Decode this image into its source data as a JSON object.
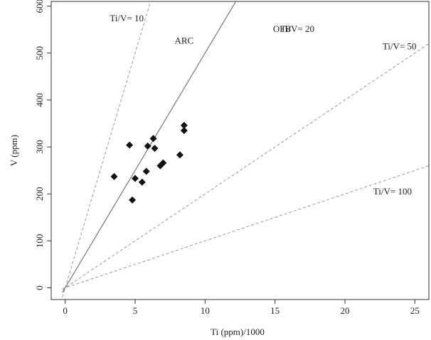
{
  "chart_data": {
    "type": "scatter",
    "xlabel": "Ti (ppm)/1000",
    "ylabel": "V (ppm)",
    "xlim": [
      -1,
      26
    ],
    "ylim": [
      -25,
      610
    ],
    "xticks": [
      "0",
      "5",
      "10",
      "15",
      "20",
      "25"
    ],
    "yticks": [
      "0",
      "100",
      "200",
      "300",
      "400",
      "500",
      "600"
    ],
    "xtick_values": [
      0,
      5,
      10,
      15,
      20,
      25
    ],
    "ytick_values": [
      0,
      100,
      200,
      300,
      400,
      500,
      600
    ],
    "grid": false,
    "reference_lines": [
      {
        "label": "Ti/V= 10",
        "slope": 100,
        "style": "dashed"
      },
      {
        "label": "Ti/V= 20",
        "slope": 50,
        "style": "solid"
      },
      {
        "label": "Ti/V= 50",
        "slope": 20,
        "style": "dashed"
      },
      {
        "label": "Ti/V= 100",
        "slope": 10,
        "style": "dashed"
      }
    ],
    "region_labels": [
      {
        "text": "ARC",
        "x": 8.5,
        "y": 520
      },
      {
        "text": "OFB",
        "x": 15.5,
        "y": 545
      }
    ],
    "points": [
      {
        "x": 3.5,
        "y": 237
      },
      {
        "x": 4.8,
        "y": 187
      },
      {
        "x": 5.0,
        "y": 233
      },
      {
        "x": 5.5,
        "y": 225
      },
      {
        "x": 5.8,
        "y": 248
      },
      {
        "x": 4.6,
        "y": 304
      },
      {
        "x": 5.9,
        "y": 302
      },
      {
        "x": 6.3,
        "y": 318
      },
      {
        "x": 6.4,
        "y": 297
      },
      {
        "x": 6.8,
        "y": 260
      },
      {
        "x": 7.0,
        "y": 266
      },
      {
        "x": 8.2,
        "y": 283
      },
      {
        "x": 8.5,
        "y": 335
      },
      {
        "x": 8.5,
        "y": 346
      }
    ]
  }
}
